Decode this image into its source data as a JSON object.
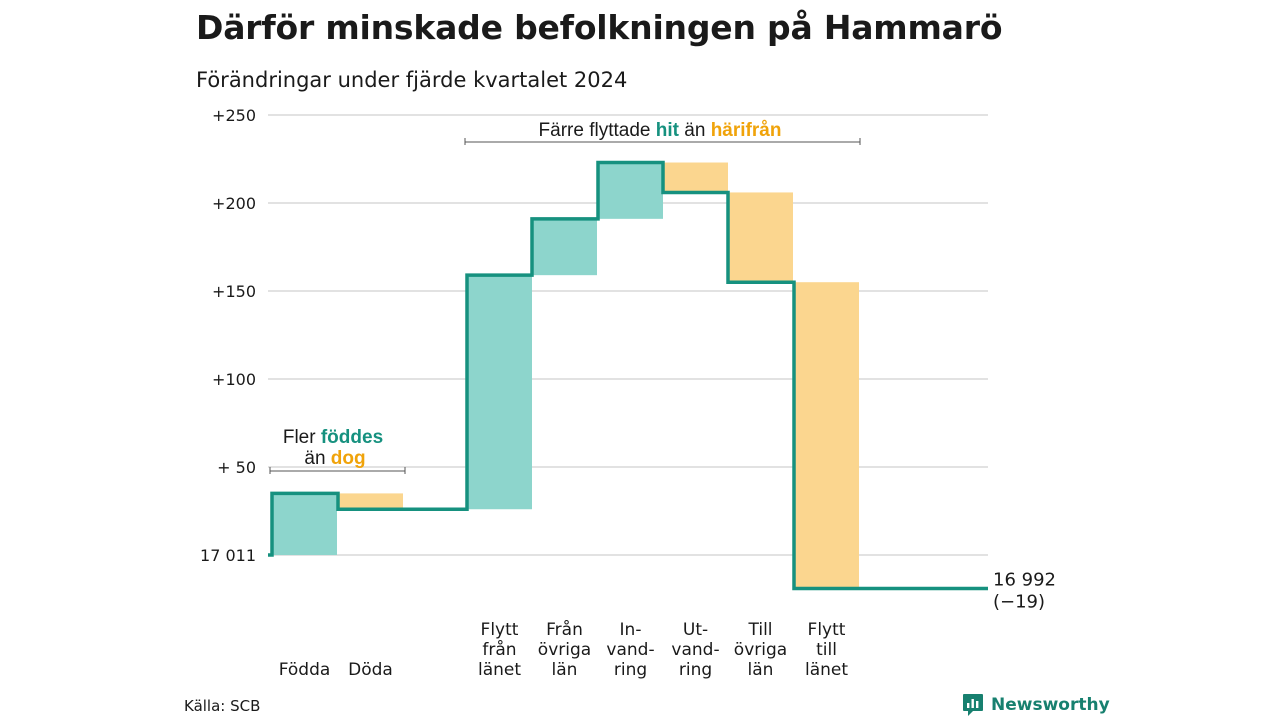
{
  "header": {
    "title": "Därför minskade befolkningen på Hammarö",
    "subtitle": "Förändringar under fjärde kvartalet 2024"
  },
  "colors": {
    "increase_fill": "#8dd5cc",
    "decrease_fill": "#fbd68f",
    "line": "#16917f",
    "accent_teal": "#16917f",
    "accent_orange": "#f0a30a",
    "grid": "#d9d9d9"
  },
  "chart_data": {
    "type": "bar",
    "subtype": "waterfall",
    "start_value": 17011,
    "start_label": "17 011",
    "end_value": 16992,
    "end_label": "16 992",
    "end_change_label": "(−19)",
    "yaxis": {
      "range": [
        -19,
        250
      ],
      "unit": "change relative to start population",
      "ticks": [
        {
          "value": 0,
          "label": "17 011"
        },
        {
          "value": 50,
          "label": "+ 50"
        },
        {
          "value": 100,
          "label": "+100"
        },
        {
          "value": 150,
          "label": "+150"
        },
        {
          "value": 200,
          "label": "+200"
        },
        {
          "value": 250,
          "label": "+250"
        }
      ]
    },
    "grid": true,
    "steps": [
      {
        "lines": [
          "Födda"
        ],
        "change": 35,
        "kind": "increase"
      },
      {
        "lines": [
          "Döda"
        ],
        "change": -9,
        "kind": "decrease"
      },
      {
        "lines": [
          "Flytt",
          "från",
          "länet"
        ],
        "change": 133,
        "kind": "increase"
      },
      {
        "lines": [
          "Från",
          "övriga",
          "län"
        ],
        "change": 32,
        "kind": "increase"
      },
      {
        "lines": [
          "In-",
          "vand-",
          "ring"
        ],
        "change": 32,
        "kind": "increase"
      },
      {
        "lines": [
          "Ut-",
          "vand-",
          "ring"
        ],
        "change": -17,
        "kind": "decrease"
      },
      {
        "lines": [
          "Till",
          "övriga",
          "län"
        ],
        "change": -51,
        "kind": "decrease"
      },
      {
        "lines": [
          "Flytt",
          "till",
          "länet"
        ],
        "change": -174,
        "kind": "decrease"
      }
    ],
    "annotations": {
      "natural": {
        "line1_prefix": "Fler ",
        "line1_highlight": "föddes",
        "line2_prefix": "än ",
        "line2_highlight": "dog"
      },
      "migration": {
        "prefix": "Färre flyttade ",
        "highlight1": "hit",
        "middle": " än ",
        "highlight2": "härifrån"
      }
    }
  },
  "footer": {
    "source": "Källa: SCB",
    "brand": "Newsworthy",
    "brand_icon": "newsworthy-logo-icon"
  }
}
